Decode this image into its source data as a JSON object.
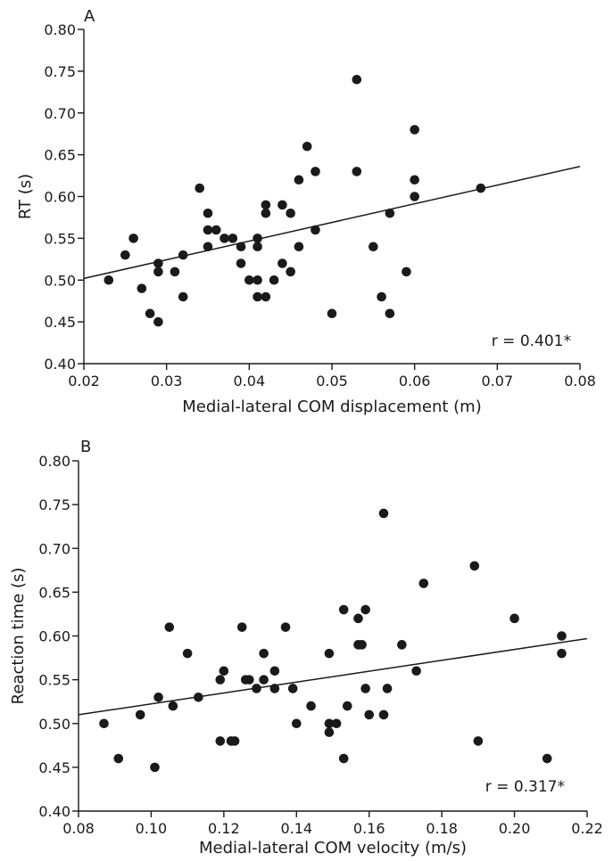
{
  "chart_data": [
    {
      "type": "scatter",
      "panel_label": "A",
      "title": "",
      "xlabel": "Medial-lateral COM displacement (m)",
      "ylabel": "RT (s)",
      "xlim": [
        0.02,
        0.08
      ],
      "ylim": [
        0.4,
        0.8
      ],
      "x_ticks": [
        "0.02",
        "0.03",
        "0.04",
        "0.05",
        "0.06",
        "0.07",
        "0.08"
      ],
      "y_ticks": [
        "0.40",
        "0.45",
        "0.50",
        "0.55",
        "0.60",
        "0.65",
        "0.70",
        "0.75",
        "0.80"
      ],
      "annotation": "r = 0.401*",
      "grid": false,
      "points": [
        [
          0.023,
          0.5
        ],
        [
          0.025,
          0.53
        ],
        [
          0.026,
          0.55
        ],
        [
          0.027,
          0.49
        ],
        [
          0.028,
          0.46
        ],
        [
          0.029,
          0.45
        ],
        [
          0.029,
          0.52
        ],
        [
          0.029,
          0.51
        ],
        [
          0.031,
          0.51
        ],
        [
          0.032,
          0.53
        ],
        [
          0.032,
          0.48
        ],
        [
          0.034,
          0.61
        ],
        [
          0.035,
          0.58
        ],
        [
          0.035,
          0.56
        ],
        [
          0.035,
          0.54
        ],
        [
          0.036,
          0.56
        ],
        [
          0.037,
          0.55
        ],
        [
          0.038,
          0.55
        ],
        [
          0.039,
          0.54
        ],
        [
          0.039,
          0.52
        ],
        [
          0.04,
          0.5
        ],
        [
          0.041,
          0.55
        ],
        [
          0.041,
          0.54
        ],
        [
          0.041,
          0.5
        ],
        [
          0.041,
          0.48
        ],
        [
          0.042,
          0.59
        ],
        [
          0.042,
          0.58
        ],
        [
          0.042,
          0.48
        ],
        [
          0.043,
          0.5
        ],
        [
          0.044,
          0.59
        ],
        [
          0.044,
          0.52
        ],
        [
          0.045,
          0.58
        ],
        [
          0.045,
          0.51
        ],
        [
          0.046,
          0.62
        ],
        [
          0.046,
          0.54
        ],
        [
          0.047,
          0.66
        ],
        [
          0.048,
          0.63
        ],
        [
          0.048,
          0.56
        ],
        [
          0.05,
          0.46
        ],
        [
          0.053,
          0.74
        ],
        [
          0.053,
          0.63
        ],
        [
          0.055,
          0.54
        ],
        [
          0.056,
          0.48
        ],
        [
          0.057,
          0.58
        ],
        [
          0.057,
          0.46
        ],
        [
          0.059,
          0.51
        ],
        [
          0.06,
          0.68
        ],
        [
          0.06,
          0.62
        ],
        [
          0.06,
          0.6
        ],
        [
          0.068,
          0.61
        ]
      ],
      "fit": {
        "x": [
          0.02,
          0.08
        ],
        "y": [
          0.502,
          0.636
        ]
      }
    },
    {
      "type": "scatter",
      "panel_label": "B",
      "title": "",
      "xlabel": "Medial-lateral COM velocity (m/s)",
      "ylabel": "Reaction time (s)",
      "xlim": [
        0.08,
        0.22
      ],
      "ylim": [
        0.4,
        0.8
      ],
      "x_ticks": [
        "0.08",
        "0.10",
        "0.12",
        "0.14",
        "0.16",
        "0.18",
        "0.20",
        "0.22"
      ],
      "y_ticks": [
        "0.40",
        "0.45",
        "0.50",
        "0.55",
        "0.60",
        "0.65",
        "0.70",
        "0.75",
        "0.80"
      ],
      "annotation": "r = 0.317*",
      "grid": false,
      "points": [
        [
          0.087,
          0.5
        ],
        [
          0.091,
          0.46
        ],
        [
          0.097,
          0.51
        ],
        [
          0.101,
          0.45
        ],
        [
          0.102,
          0.53
        ],
        [
          0.105,
          0.61
        ],
        [
          0.106,
          0.52
        ],
        [
          0.11,
          0.58
        ],
        [
          0.113,
          0.53
        ],
        [
          0.119,
          0.55
        ],
        [
          0.119,
          0.48
        ],
        [
          0.12,
          0.56
        ],
        [
          0.122,
          0.48
        ],
        [
          0.123,
          0.48
        ],
        [
          0.125,
          0.61
        ],
        [
          0.126,
          0.55
        ],
        [
          0.127,
          0.55
        ],
        [
          0.129,
          0.54
        ],
        [
          0.131,
          0.58
        ],
        [
          0.131,
          0.55
        ],
        [
          0.134,
          0.56
        ],
        [
          0.134,
          0.54
        ],
        [
          0.137,
          0.61
        ],
        [
          0.139,
          0.54
        ],
        [
          0.14,
          0.5
        ],
        [
          0.144,
          0.52
        ],
        [
          0.149,
          0.58
        ],
        [
          0.149,
          0.5
        ],
        [
          0.149,
          0.49
        ],
        [
          0.151,
          0.5
        ],
        [
          0.153,
          0.63
        ],
        [
          0.153,
          0.46
        ],
        [
          0.154,
          0.52
        ],
        [
          0.157,
          0.62
        ],
        [
          0.157,
          0.59
        ],
        [
          0.158,
          0.59
        ],
        [
          0.159,
          0.63
        ],
        [
          0.159,
          0.54
        ],
        [
          0.16,
          0.51
        ],
        [
          0.164,
          0.74
        ],
        [
          0.164,
          0.51
        ],
        [
          0.165,
          0.54
        ],
        [
          0.169,
          0.59
        ],
        [
          0.173,
          0.56
        ],
        [
          0.175,
          0.66
        ],
        [
          0.189,
          0.68
        ],
        [
          0.19,
          0.48
        ],
        [
          0.2,
          0.62
        ],
        [
          0.209,
          0.46
        ],
        [
          0.213,
          0.6
        ],
        [
          0.213,
          0.58
        ]
      ],
      "fit": {
        "x": [
          0.08,
          0.22
        ],
        "y": [
          0.51,
          0.597
        ]
      }
    }
  ]
}
